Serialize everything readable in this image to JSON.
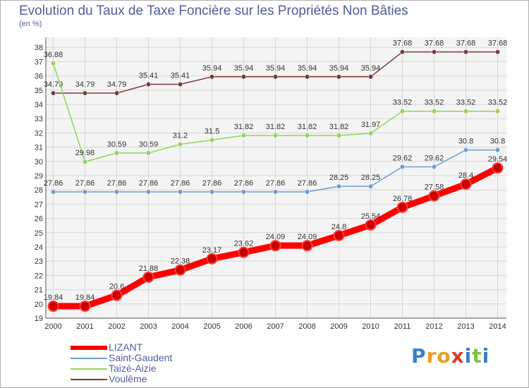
{
  "chart_data": {
    "type": "line",
    "title": "Evolution du Taux de Taxe Foncière sur les Propriétés Non Bâties",
    "unit_label": "(en %)",
    "categories": [
      "2000",
      "2001",
      "2002",
      "2003",
      "2004",
      "2005",
      "2006",
      "2007",
      "2008",
      "2009",
      "2010",
      "2011",
      "2012",
      "2013",
      "2014"
    ],
    "ylim": [
      19,
      38
    ],
    "yticks": [
      19,
      20,
      21,
      22,
      23,
      24,
      25,
      26,
      27,
      28,
      29,
      30,
      31,
      32,
      33,
      34,
      35,
      36,
      37,
      38
    ],
    "grid": true,
    "series": [
      {
        "name": "LIZANT",
        "color": "#ff0000",
        "values": [
          19.84,
          19.84,
          20.6,
          21.88,
          22.38,
          23.17,
          23.62,
          24.09,
          24.09,
          24.8,
          25.54,
          26.78,
          27.58,
          28.4,
          29.54
        ],
        "labels": [
          "19.84",
          "19.84",
          "20.6",
          "21.88",
          "22.38",
          "23.17",
          "23.62",
          "24.09",
          "24.09",
          "24.8",
          "25.54",
          "26.78",
          "27.58",
          "28.4",
          "29.54"
        ]
      },
      {
        "name": "Saint-Gaudent",
        "color": "#6a9ed4",
        "values": [
          27.86,
          27.86,
          27.86,
          27.86,
          27.86,
          27.86,
          27.86,
          27.86,
          27.86,
          28.25,
          28.25,
          29.62,
          29.62,
          30.8,
          30.8
        ],
        "labels": [
          "27.86",
          "27.86",
          "27.86",
          "27.86",
          "27.86",
          "27.86",
          "27.86",
          "27.86",
          "27.86",
          "28.25",
          "28.25",
          "29.62",
          "29.62",
          "30.8",
          "30.8"
        ]
      },
      {
        "name": "Taizé-Aizie",
        "color": "#93d35a",
        "values": [
          36.88,
          29.98,
          30.59,
          30.59,
          31.2,
          31.5,
          31.82,
          31.82,
          31.82,
          31.82,
          31.97,
          33.52,
          33.52,
          33.52,
          33.52
        ],
        "labels": [
          "36.88",
          "29.98",
          "30.59",
          "30.59",
          "31.2",
          "31.5",
          "31.82",
          "31.82",
          "31.82",
          "31.82",
          "31.97",
          "33.52",
          "33.52",
          "33.52",
          "33.52"
        ]
      },
      {
        "name": "Voulême",
        "color": "#7a3a3a",
        "values": [
          34.79,
          34.79,
          34.79,
          35.41,
          35.41,
          35.94,
          35.94,
          35.94,
          35.94,
          35.94,
          35.94,
          37.68,
          37.68,
          37.68,
          37.68
        ],
        "labels": [
          "34.79",
          "34.79",
          "34.79",
          "35.41",
          "35.41",
          "35.94",
          "35.94",
          "35.94",
          "35.94",
          "35.94",
          "35.94",
          "37.68",
          "37.68",
          "37.68",
          "37.68"
        ]
      }
    ],
    "legend_position": "bottom-left"
  },
  "logo": {
    "letters": [
      "P",
      "r",
      "o",
      "x",
      "i",
      "t",
      "i"
    ],
    "colors": [
      "#3a7fc8",
      "#e8a020",
      "#e8a020",
      "#d83a2a",
      "#3a7fc8",
      "#7cc040",
      "#3a7fc8"
    ]
  }
}
